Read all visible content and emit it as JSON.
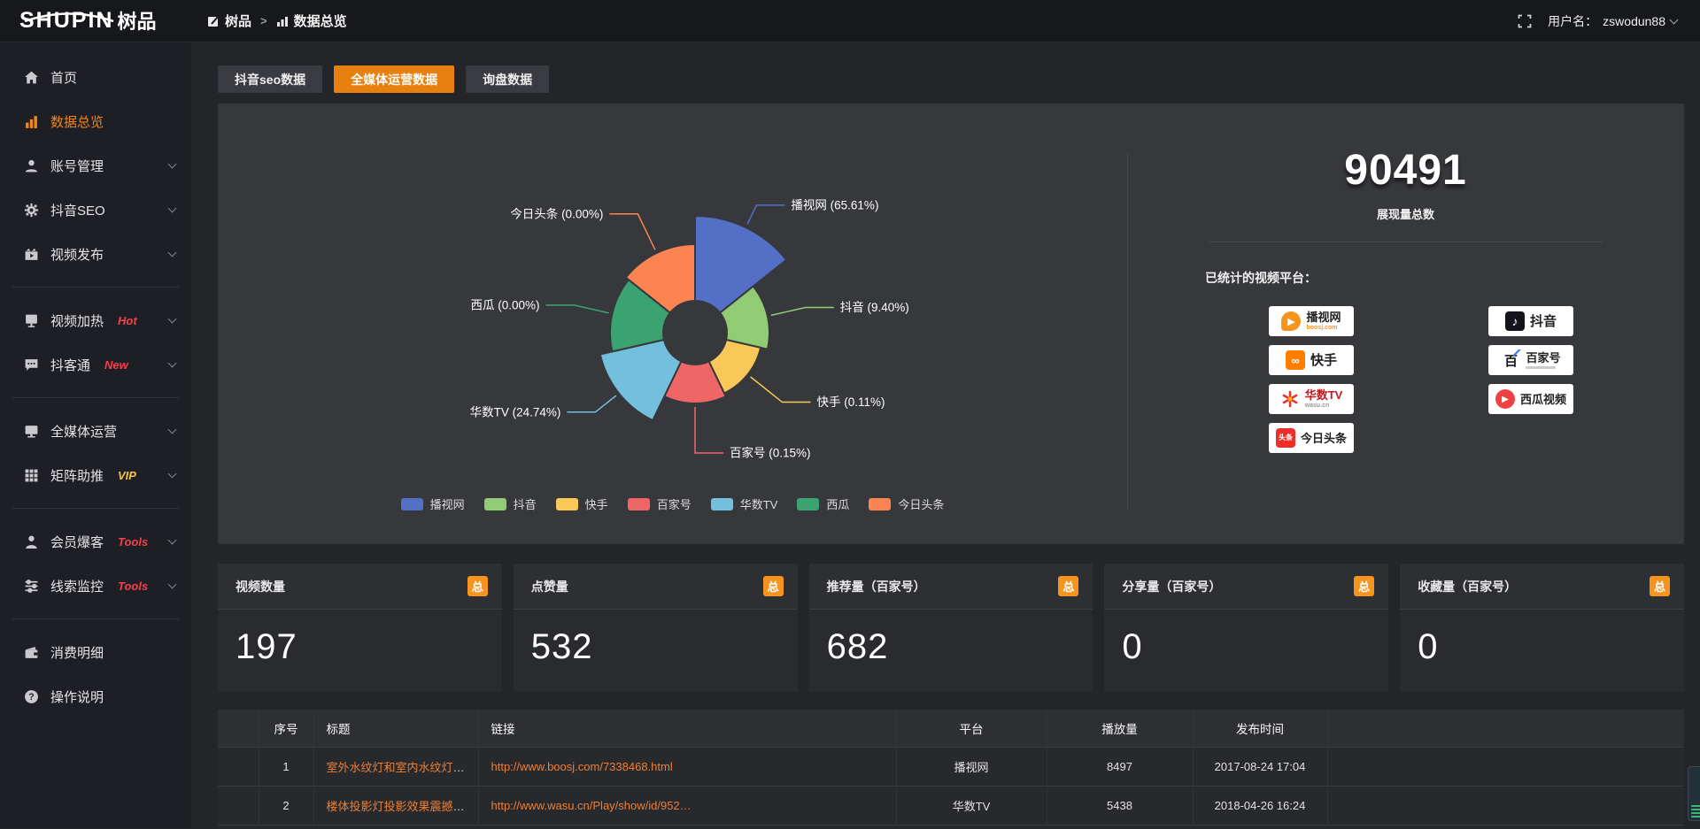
{
  "topbar": {
    "logo_main": "SHUPIN",
    "logo_suffix": "树品",
    "breadcrumb": [
      {
        "label": "树品"
      },
      {
        "label": "数据总览"
      }
    ],
    "username_label": "用户名：",
    "username": "zswodun88"
  },
  "sidebar": {
    "items": [
      {
        "type": "item",
        "icon": "home",
        "label": "首页"
      },
      {
        "type": "item",
        "icon": "chart",
        "label": "数据总览",
        "active": true
      },
      {
        "type": "item",
        "icon": "user",
        "label": "账号管理",
        "chevron": true
      },
      {
        "type": "item",
        "icon": "gear",
        "label": "抖音SEO",
        "chevron": true
      },
      {
        "type": "item",
        "icon": "video",
        "label": "视频发布",
        "chevron": true
      },
      {
        "type": "divider"
      },
      {
        "type": "item",
        "icon": "screen",
        "label": "视频加热",
        "badge": "Hot",
        "badge_color": "red",
        "chevron": true
      },
      {
        "type": "item",
        "icon": "bubble",
        "label": "抖客通",
        "badge": "New",
        "badge_color": "red",
        "chevron": true
      },
      {
        "type": "divider"
      },
      {
        "type": "item",
        "icon": "monitor",
        "label": "全媒体运营",
        "chevron": true
      },
      {
        "type": "item",
        "icon": "grid",
        "label": "矩阵助推",
        "badge": "VIP",
        "badge_color": "gold",
        "chevron": true
      },
      {
        "type": "divider"
      },
      {
        "type": "item",
        "icon": "person",
        "label": "会员爆客",
        "badge": "Tools",
        "badge_color": "red",
        "chevron": true
      },
      {
        "type": "item",
        "icon": "sliders",
        "label": "线索监控",
        "badge": "Tools",
        "badge_color": "red",
        "chevron": true
      },
      {
        "type": "divider"
      },
      {
        "type": "item",
        "icon": "wallet",
        "label": "消费明细"
      },
      {
        "type": "item",
        "icon": "question",
        "label": "操作说明"
      }
    ]
  },
  "tabs": [
    {
      "label": "抖音seo数据",
      "active": false
    },
    {
      "label": "全媒体运营数据",
      "active": true
    },
    {
      "label": "询盘数据",
      "active": false
    }
  ],
  "chart_data": {
    "type": "pie",
    "variant": "rose-donut",
    "labels": [
      "播视网",
      "抖音",
      "快手",
      "百家号",
      "华数TV",
      "西瓜",
      "今日头条"
    ],
    "values_pct": [
      65.61,
      9.4,
      0.11,
      0.15,
      24.74,
      0.0,
      0.0
    ],
    "pct_labels": [
      "65.61%",
      "9.40%",
      "0.11%",
      "0.15%",
      "24.74%",
      "0.00%",
      "0.00%"
    ],
    "colors": [
      "#5470c6",
      "#91cc75",
      "#fac858",
      "#ee6666",
      "#73c0de",
      "#3ba272",
      "#fc8452"
    ],
    "radii": [
      132,
      84,
      76,
      80,
      110,
      96,
      100
    ],
    "inner_radius": 36,
    "legend": [
      "播视网",
      "抖音",
      "快手",
      "百家号",
      "华数TV",
      "西瓜",
      "今日头条"
    ],
    "legend_position": "bottom",
    "label_line_len": [
      24,
      40,
      46,
      52,
      30,
      40,
      45
    ],
    "total": 90491
  },
  "summary": {
    "total": "90491",
    "total_label": "展现量总数",
    "platforms_title": "已统计的视频平台：",
    "platforms_left": [
      {
        "key": "boosj",
        "name": "播视网",
        "sub": "boosj.com"
      },
      {
        "key": "kuaishou",
        "name": "快手"
      },
      {
        "key": "wasu",
        "name": "华数TV",
        "sub": "wasu.cn"
      },
      {
        "key": "toutiao",
        "name": "今日头条"
      }
    ],
    "platforms_right": [
      {
        "key": "douyin",
        "name": "抖音"
      },
      {
        "key": "baijiahao",
        "name": "百家号"
      },
      {
        "key": "xigua",
        "name": "西瓜视频"
      }
    ]
  },
  "stat_cards": [
    {
      "label": "视频数量",
      "badge": "总",
      "value": "197"
    },
    {
      "label": "点赞量",
      "badge": "总",
      "value": "532"
    },
    {
      "label": "推荐量（百家号）",
      "badge": "总",
      "value": "682"
    },
    {
      "label": "分享量（百家号）",
      "badge": "总",
      "value": "0"
    },
    {
      "label": "收藏量（百家号）",
      "badge": "总",
      "value": "0"
    }
  ],
  "table": {
    "headers": [
      "序号",
      "标题",
      "链接",
      "平台",
      "播放量",
      "发布时间"
    ],
    "rows": [
      [
        "1",
        "室外水纹灯和室内水纹灯的区别和简介",
        "http://www.boosj.com/7338468.html",
        "播视网",
        "8497",
        "2017-08-24 17:04"
      ],
      [
        "2",
        "楼体投影灯投影效果震撼上市",
        "http://www.wasu.cn/Play/show/id/952…",
        "华数TV",
        "5438",
        "2018-04-26 16:24"
      ]
    ]
  },
  "colors": {
    "accent_orange": "#e8800f",
    "badge_orange": "#f7941d",
    "sidebar_active": "#f0861c",
    "link_orange": "#ee7f33",
    "hot_red": "#f5404c",
    "vip_gold": "#f6c643",
    "panel_bg": "#37383c"
  }
}
